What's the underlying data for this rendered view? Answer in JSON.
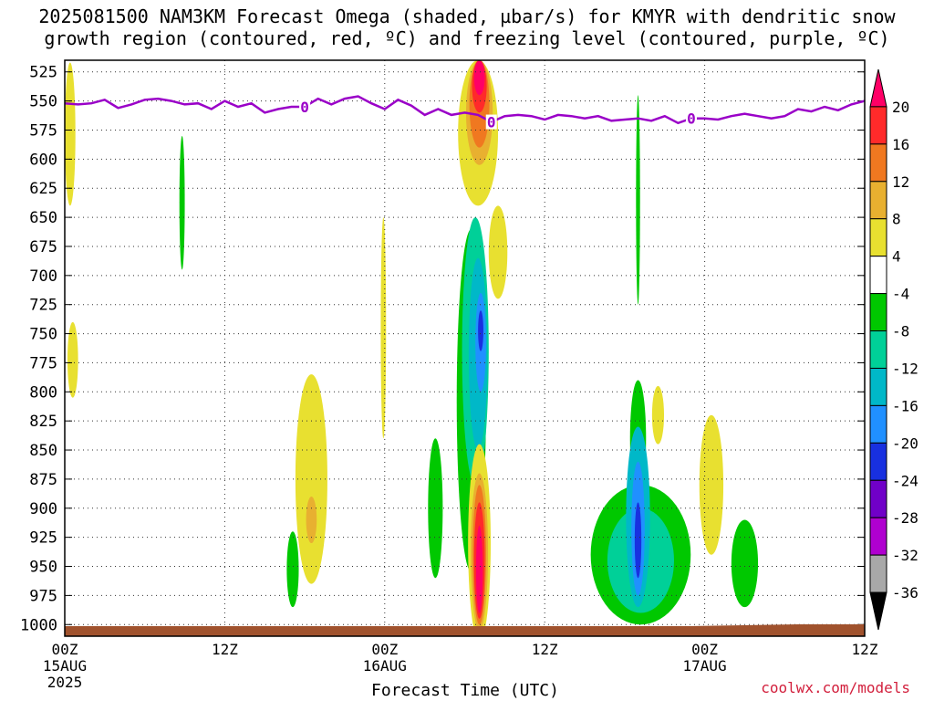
{
  "title": {
    "line1": "2025081500 NAM3KM Forecast Omega (shaded, µbar/s) for KMYR with dendritic snow",
    "line2": "growth region (contoured, red, ºC) and freezing level (contoured, purple, ºC)"
  },
  "branding": "coolwx.com/models",
  "chart_data": {
    "type": "heatmap",
    "xlabel": "Forecast Time (UTC)",
    "x_range_hours": [
      0,
      60
    ],
    "x_ticks": [
      {
        "hour": 0,
        "label": "00Z",
        "sub": "15AUG",
        "sub2": "2025"
      },
      {
        "hour": 12,
        "label": "12Z",
        "sub": "",
        "sub2": ""
      },
      {
        "hour": 24,
        "label": "00Z",
        "sub": "16AUG",
        "sub2": ""
      },
      {
        "hour": 36,
        "label": "12Z",
        "sub": "",
        "sub2": ""
      },
      {
        "hour": 48,
        "label": "00Z",
        "sub": "17AUG",
        "sub2": ""
      },
      {
        "hour": 60,
        "label": "12Z",
        "sub": "",
        "sub2": ""
      }
    ],
    "y_range_hPa": [
      1010,
      515
    ],
    "y_ticks": [
      525,
      550,
      575,
      600,
      625,
      650,
      675,
      700,
      725,
      750,
      775,
      800,
      825,
      850,
      875,
      900,
      925,
      950,
      975,
      1000
    ],
    "grid": true,
    "colorbar": {
      "labels": [
        "20",
        "16",
        "12",
        "8",
        "4",
        "-4",
        "-8",
        "-12",
        "-16",
        "-20",
        "-24",
        "-28",
        "-32",
        "-36"
      ],
      "colors": [
        "#ff0066",
        "#ff2a2a",
        "#f07820",
        "#e8b030",
        "#e8e030",
        "#ffffff",
        "#00c800",
        "#00d098",
        "#00b8c8",
        "#2090ff",
        "#1830e0",
        "#7000c8",
        "#b000d0",
        "#a8a8a8",
        "#000000"
      ]
    },
    "freezing_level": {
      "label": "0",
      "color": "#9a00c8",
      "points": [
        [
          0,
          552
        ],
        [
          1,
          553
        ],
        [
          2,
          552
        ],
        [
          3,
          549
        ],
        [
          4,
          556
        ],
        [
          5,
          553
        ],
        [
          6,
          549
        ],
        [
          7,
          548
        ],
        [
          8,
          550
        ],
        [
          9,
          553
        ],
        [
          10,
          552
        ],
        [
          11,
          557
        ],
        [
          12,
          550
        ],
        [
          13,
          555
        ],
        [
          14,
          552
        ],
        [
          15,
          560
        ],
        [
          16,
          557
        ],
        [
          17,
          555
        ],
        [
          18,
          555
        ],
        [
          19,
          548
        ],
        [
          20,
          553
        ],
        [
          21,
          548
        ],
        [
          22,
          546
        ],
        [
          23,
          552
        ],
        [
          24,
          557
        ],
        [
          25,
          549
        ],
        [
          26,
          554
        ],
        [
          27,
          562
        ],
        [
          28,
          557
        ],
        [
          29,
          562
        ],
        [
          30,
          560
        ],
        [
          31,
          562
        ],
        [
          32,
          568
        ],
        [
          33,
          563
        ],
        [
          34,
          562
        ],
        [
          35,
          563
        ],
        [
          36,
          566
        ],
        [
          37,
          562
        ],
        [
          38,
          563
        ],
        [
          39,
          565
        ],
        [
          40,
          563
        ],
        [
          41,
          567
        ],
        [
          42,
          566
        ],
        [
          43,
          565
        ],
        [
          44,
          567
        ],
        [
          45,
          563
        ],
        [
          46,
          569
        ],
        [
          47,
          565
        ],
        [
          48,
          565
        ],
        [
          49,
          566
        ],
        [
          50,
          563
        ],
        [
          51,
          561
        ],
        [
          52,
          563
        ],
        [
          53,
          565
        ],
        [
          54,
          563
        ],
        [
          55,
          557
        ],
        [
          56,
          559
        ],
        [
          57,
          555
        ],
        [
          58,
          558
        ],
        [
          59,
          553
        ],
        [
          60,
          550
        ]
      ]
    },
    "omega_areas": [
      {
        "value": 4,
        "color": "#e8e030",
        "hour_center": 0.4,
        "hPa": [
          517,
          640
        ],
        "width_h": 0.8
      },
      {
        "value": 4,
        "color": "#e8e030",
        "hour_center": 0.6,
        "hPa": [
          740,
          805
        ],
        "width_h": 0.8
      },
      {
        "value": -4,
        "color": "#00c800",
        "hour_center": 8.8,
        "hPa": [
          580,
          695
        ],
        "width_h": 0.4
      },
      {
        "value": 4,
        "color": "#e8e030",
        "hour_center": 18.5,
        "hPa": [
          785,
          965
        ],
        "width_h": 2.4
      },
      {
        "value": 8,
        "color": "#e8b030",
        "hour_center": 18.5,
        "hPa": [
          890,
          930
        ],
        "width_h": 0.8
      },
      {
        "value": -4,
        "color": "#00c800",
        "hour_center": 17.1,
        "hPa": [
          920,
          985
        ],
        "width_h": 0.9
      },
      {
        "value": 4,
        "color": "#e8e030",
        "hour_center": 23.9,
        "hPa": [
          650,
          840
        ],
        "width_h": 0.4
      },
      {
        "value": -4,
        "color": "#00c800",
        "hour_center": 27.8,
        "hPa": [
          840,
          960
        ],
        "width_h": 1.1
      },
      {
        "value": -4,
        "color": "#00c800",
        "hour_center": 30.5,
        "hPa": [
          660,
          955
        ],
        "width_h": 2.2
      },
      {
        "value": -8,
        "color": "#00d098",
        "hour_center": 30.8,
        "hPa": [
          650,
          880
        ],
        "width_h": 2.0
      },
      {
        "value": -12,
        "color": "#00b8c8",
        "hour_center": 31.0,
        "hPa": [
          685,
          850
        ],
        "width_h": 1.4
      },
      {
        "value": -16,
        "color": "#2090ff",
        "hour_center": 31.2,
        "hPa": [
          715,
          800
        ],
        "width_h": 0.8
      },
      {
        "value": -20,
        "color": "#1830e0",
        "hour_center": 31.2,
        "hPa": [
          730,
          765
        ],
        "width_h": 0.4
      },
      {
        "value": 4,
        "color": "#e8e030",
        "hour_center": 32.5,
        "hPa": [
          640,
          720
        ],
        "width_h": 1.4
      },
      {
        "value": 4,
        "color": "#e8e030",
        "hour_center": 31.0,
        "hPa": [
          515,
          640
        ],
        "width_h": 3.0
      },
      {
        "value": 8,
        "color": "#e8b030",
        "hour_center": 31.1,
        "hPa": [
          515,
          605
        ],
        "width_h": 2.0
      },
      {
        "value": 12,
        "color": "#f07820",
        "hour_center": 31.1,
        "hPa": [
          515,
          590
        ],
        "width_h": 1.5
      },
      {
        "value": 16,
        "color": "#ff2a2a",
        "hour_center": 31.1,
        "hPa": [
          515,
          560
        ],
        "width_h": 1.1
      },
      {
        "value": 20,
        "color": "#ff0066",
        "hour_center": 31.1,
        "hPa": [
          515,
          545
        ],
        "width_h": 0.8
      },
      {
        "value": 4,
        "color": "#e8e030",
        "hour_center": 31.1,
        "hPa": [
          845,
          1015
        ],
        "width_h": 1.7
      },
      {
        "value": 8,
        "color": "#e8b030",
        "hour_center": 31.1,
        "hPa": [
          870,
          1005
        ],
        "width_h": 1.3
      },
      {
        "value": 12,
        "color": "#f07820",
        "hour_center": 31.1,
        "hPa": [
          880,
          1000
        ],
        "width_h": 1.0
      },
      {
        "value": 16,
        "color": "#ff2a2a",
        "hour_center": 31.1,
        "hPa": [
          895,
          995
        ],
        "width_h": 0.8
      },
      {
        "value": 20,
        "color": "#ff0066",
        "hour_center": 31.1,
        "hPa": [
          915,
          990
        ],
        "width_h": 0.5
      },
      {
        "value": -4,
        "color": "#00c800",
        "hour_center": 43.0,
        "hPa": [
          545,
          725
        ],
        "width_h": 0.3
      },
      {
        "value": -4,
        "color": "#00c800",
        "hour_center": 43.2,
        "hPa": [
          880,
          1000
        ],
        "width_h": 7.5
      },
      {
        "value": -4,
        "color": "#00c800",
        "hour_center": 43.0,
        "hPa": [
          790,
          890
        ],
        "width_h": 1.2
      },
      {
        "value": -8,
        "color": "#00d098",
        "hour_center": 43.2,
        "hPa": [
          900,
          990
        ],
        "width_h": 5.0
      },
      {
        "value": -12,
        "color": "#00b8c8",
        "hour_center": 43.0,
        "hPa": [
          830,
          985
        ],
        "width_h": 1.8
      },
      {
        "value": -16,
        "color": "#2090ff",
        "hour_center": 43.0,
        "hPa": [
          860,
          975
        ],
        "width_h": 1.0
      },
      {
        "value": -20,
        "color": "#1830e0",
        "hour_center": 43.0,
        "hPa": [
          895,
          960
        ],
        "width_h": 0.5
      },
      {
        "value": 4,
        "color": "#e8e030",
        "hour_center": 44.5,
        "hPa": [
          795,
          845
        ],
        "width_h": 0.9
      },
      {
        "value": 4,
        "color": "#e8e030",
        "hour_center": 48.5,
        "hPa": [
          820,
          940
        ],
        "width_h": 1.8
      },
      {
        "value": -4,
        "color": "#00c800",
        "hour_center": 51.0,
        "hPa": [
          910,
          985
        ],
        "width_h": 2.0
      }
    ]
  }
}
